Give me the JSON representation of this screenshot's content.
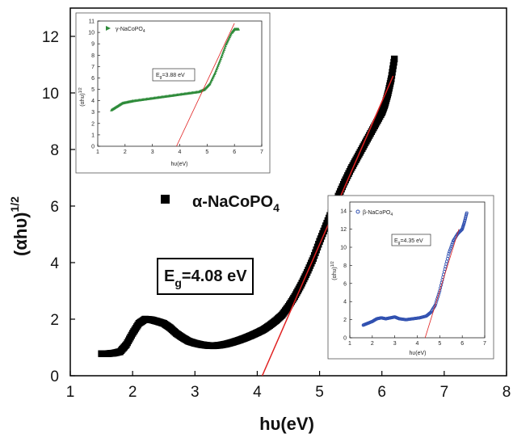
{
  "chart_data": [
    {
      "id": "main",
      "type": "scatter",
      "xlabel_base": "hυ(eV)",
      "ylabel_base": "(αhυ)",
      "ylabel_exp": "1/2",
      "xlim": [
        1,
        8
      ],
      "ylim": [
        0,
        13
      ],
      "xticks": [
        1,
        2,
        3,
        4,
        5,
        6,
        7,
        8
      ],
      "yticks": [
        0,
        2,
        4,
        6,
        8,
        10,
        12
      ],
      "legend": {
        "prefix": "α-NaCoPO",
        "subscript": "4",
        "marker": "square",
        "placement": "center-left"
      },
      "annotation": {
        "prefix": "E",
        "subscript": "g",
        "suffix": "=4.08 eV"
      },
      "series": [
        {
          "name": "α-NaCoPO4",
          "color": "#000000",
          "marker": "square",
          "points": [
            [
              1.5,
              0.78
            ],
            [
              1.6,
              0.78
            ],
            [
              1.7,
              0.8
            ],
            [
              1.8,
              0.85
            ],
            [
              1.9,
              1.1
            ],
            [
              2.0,
              1.5
            ],
            [
              2.1,
              1.85
            ],
            [
              2.2,
              2.0
            ],
            [
              2.3,
              1.98
            ],
            [
              2.4,
              1.92
            ],
            [
              2.5,
              1.85
            ],
            [
              2.6,
              1.7
            ],
            [
              2.7,
              1.5
            ],
            [
              2.8,
              1.35
            ],
            [
              2.9,
              1.22
            ],
            [
              3.0,
              1.15
            ],
            [
              3.1,
              1.1
            ],
            [
              3.2,
              1.07
            ],
            [
              3.3,
              1.06
            ],
            [
              3.4,
              1.08
            ],
            [
              3.5,
              1.12
            ],
            [
              3.6,
              1.18
            ],
            [
              3.7,
              1.25
            ],
            [
              3.8,
              1.33
            ],
            [
              3.9,
              1.42
            ],
            [
              4.0,
              1.52
            ],
            [
              4.1,
              1.63
            ],
            [
              4.2,
              1.78
            ],
            [
              4.3,
              1.95
            ],
            [
              4.4,
              2.15
            ],
            [
              4.5,
              2.45
            ],
            [
              4.6,
              2.8
            ],
            [
              4.7,
              3.2
            ],
            [
              4.8,
              3.65
            ],
            [
              4.9,
              4.15
            ],
            [
              5.0,
              4.75
            ],
            [
              5.1,
              5.3
            ],
            [
              5.2,
              5.85
            ],
            [
              5.3,
              6.35
            ],
            [
              5.4,
              6.85
            ],
            [
              5.5,
              7.3
            ],
            [
              5.6,
              7.7
            ],
            [
              5.7,
              8.1
            ],
            [
              5.8,
              8.5
            ],
            [
              5.9,
              8.9
            ],
            [
              6.0,
              9.3
            ],
            [
              6.05,
              9.6
            ],
            [
              6.1,
              10.0
            ],
            [
              6.15,
              10.5
            ],
            [
              6.2,
              11.2
            ]
          ]
        }
      ],
      "fit_line": {
        "color": "#e02020",
        "points": [
          [
            4.08,
            0
          ],
          [
            6.18,
            10.6
          ]
        ]
      }
    },
    {
      "id": "inset-gamma",
      "type": "scatter",
      "label_prefix": "γ-NaCoPO",
      "label_sub": "4",
      "xlabel": "hυ(eV)",
      "ylabel": "(αhυ)",
      "ylabel_exp": "1/2",
      "xlim": [
        1,
        7
      ],
      "ylim": [
        0,
        11
      ],
      "xticks": [
        1,
        2,
        3,
        4,
        5,
        6,
        7
      ],
      "yticks": [
        0,
        1,
        2,
        3,
        4,
        5,
        6,
        7,
        8,
        9,
        10,
        11
      ],
      "annotation": {
        "prefix": "E",
        "subscript": "g",
        "suffix": "=3.88 eV"
      },
      "series": [
        {
          "name": "γ-NaCoPO4",
          "color": "#2e8b3a",
          "marker": "triangle",
          "points": [
            [
              1.5,
              3.2
            ],
            [
              1.7,
              3.5
            ],
            [
              1.9,
              3.8
            ],
            [
              2.1,
              3.9
            ],
            [
              2.3,
              4.0
            ],
            [
              2.6,
              4.1
            ],
            [
              2.9,
              4.2
            ],
            [
              3.2,
              4.3
            ],
            [
              3.5,
              4.4
            ],
            [
              3.8,
              4.5
            ],
            [
              4.1,
              4.6
            ],
            [
              4.4,
              4.7
            ],
            [
              4.7,
              4.8
            ],
            [
              4.9,
              5.0
            ],
            [
              5.1,
              5.5
            ],
            [
              5.3,
              6.5
            ],
            [
              5.5,
              7.7
            ],
            [
              5.7,
              9.0
            ],
            [
              5.9,
              10.0
            ],
            [
              6.0,
              10.3
            ],
            [
              6.15,
              10.3
            ]
          ]
        }
      ],
      "fit_line": {
        "color": "#e02020",
        "points": [
          [
            3.88,
            0
          ],
          [
            6.0,
            10.8
          ]
        ]
      }
    },
    {
      "id": "inset-beta",
      "type": "scatter",
      "label_prefix": "β-NaCoPO",
      "label_sub": "4",
      "xlabel": "hυ(eV)",
      "ylabel": "(αhυ)",
      "ylabel_exp": "1/2",
      "xlim": [
        1,
        7
      ],
      "ylim": [
        0,
        15
      ],
      "xticks": [
        1,
        2,
        3,
        4,
        5,
        6,
        7
      ],
      "yticks": [
        0,
        2,
        4,
        6,
        8,
        10,
        12,
        14
      ],
      "annotation": {
        "prefix": "E",
        "subscript": "g",
        "suffix": "=4.35 eV"
      },
      "series": [
        {
          "name": "β-NaCoPO4",
          "color": "#3050b0",
          "marker": "circle",
          "points": [
            [
              1.6,
              1.4
            ],
            [
              1.8,
              1.6
            ],
            [
              2.0,
              1.8
            ],
            [
              2.2,
              2.1
            ],
            [
              2.4,
              2.2
            ],
            [
              2.6,
              2.1
            ],
            [
              2.8,
              2.2
            ],
            [
              3.0,
              2.3
            ],
            [
              3.2,
              2.1
            ],
            [
              3.5,
              2.0
            ],
            [
              3.8,
              2.1
            ],
            [
              4.1,
              2.2
            ],
            [
              4.4,
              2.4
            ],
            [
              4.6,
              2.8
            ],
            [
              4.8,
              3.6
            ],
            [
              5.0,
              5.2
            ],
            [
              5.2,
              7.3
            ],
            [
              5.4,
              9.3
            ],
            [
              5.6,
              10.7
            ],
            [
              5.8,
              11.5
            ],
            [
              6.0,
              12.0
            ],
            [
              6.1,
              12.8
            ],
            [
              6.2,
              13.8
            ]
          ]
        }
      ],
      "fit_line": {
        "color": "#e02020",
        "points": [
          [
            4.35,
            0
          ],
          [
            5.85,
            12.0
          ]
        ]
      }
    }
  ]
}
